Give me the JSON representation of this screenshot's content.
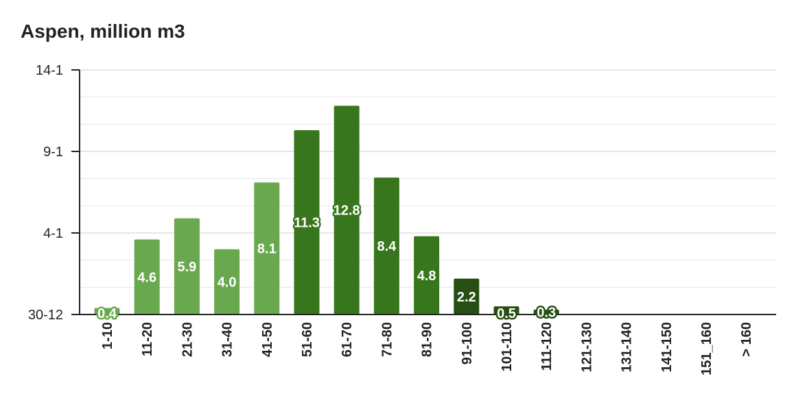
{
  "chart_data": {
    "type": "bar",
    "title": "Aspen, million m3",
    "xlabel": "",
    "ylabel": "",
    "categories": [
      "1-10",
      "11-20",
      "21-30",
      "31-40",
      "41-50",
      "51-60",
      "61-70",
      "71-80",
      "81-90",
      "91-100",
      "101-110",
      "111-120",
      "121-130",
      "131-140",
      "141-150",
      "151_160",
      "> 160"
    ],
    "values": [
      0.4,
      4.6,
      5.9,
      4.0,
      8.1,
      11.3,
      12.8,
      8.4,
      4.8,
      2.2,
      0.5,
      0.3,
      0,
      0,
      0,
      0,
      0
    ],
    "data_labels": [
      "0.4",
      "4.6",
      "5.9",
      "4.0",
      "8.1",
      "11.3",
      "12.8",
      "8.4",
      "4.8",
      "2.2",
      "0.5",
      "0.3",
      "",
      "",
      "",
      "",
      ""
    ],
    "bar_colors": [
      "#6aa84f",
      "#6aa84f",
      "#6aa84f",
      "#6aa84f",
      "#6aa84f",
      "#38761d",
      "#38761d",
      "#38761d",
      "#38761d",
      "#274e13",
      "#274e13",
      "#274e13",
      "#274e13",
      "#274e13",
      "#274e13",
      "#274e13",
      "#274e13"
    ],
    "yticks": [
      {
        "value": 0,
        "label": "30-12"
      },
      {
        "value": 5,
        "label": "4-1"
      },
      {
        "value": 10,
        "label": "9-1"
      },
      {
        "value": 15,
        "label": "14-1"
      }
    ],
    "ylim": [
      0,
      15
    ],
    "grid": true,
    "legend": "none"
  }
}
